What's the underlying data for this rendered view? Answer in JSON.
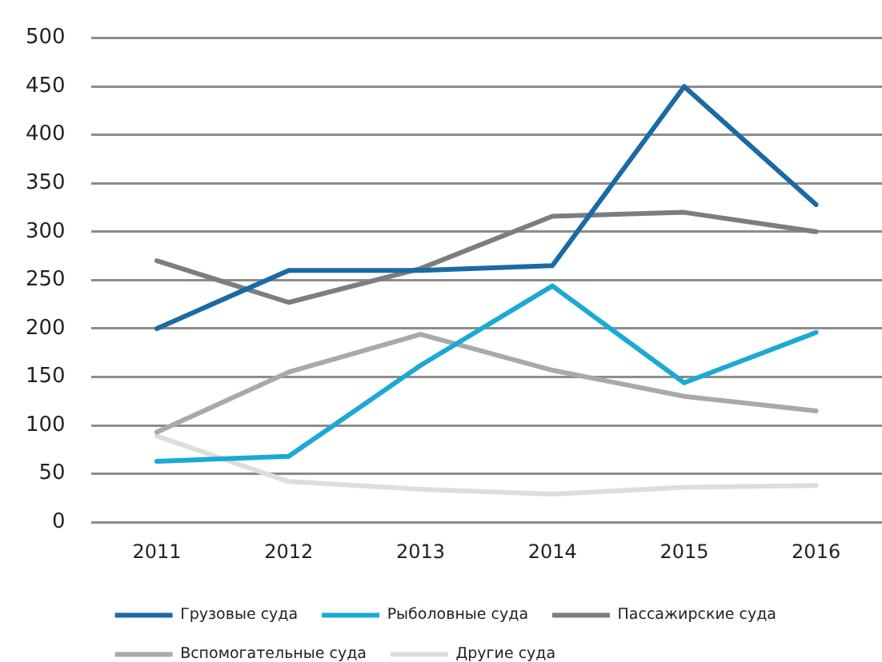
{
  "chart_data": {
    "type": "line",
    "categories": [
      "2011",
      "2012",
      "2013",
      "2014",
      "2015",
      "2016"
    ],
    "series": [
      {
        "name": "Грузовые суда",
        "color": "#1a6aa4",
        "values": [
          200,
          260,
          260,
          265,
          450,
          328
        ]
      },
      {
        "name": "Рыболовные суда",
        "color": "#1ba9d6",
        "values": [
          63,
          68,
          162,
          244,
          144,
          196
        ]
      },
      {
        "name": "Пассажирские суда",
        "color": "#7b7e80",
        "values": [
          270,
          227,
          262,
          316,
          320,
          300
        ]
      },
      {
        "name": "Вспомогательные суда",
        "color": "#a7a9aa",
        "values": [
          93,
          155,
          194,
          157,
          130,
          115
        ]
      },
      {
        "name": "Другие суда",
        "color": "#dcdddd",
        "values": [
          89,
          42,
          34,
          29,
          36,
          38
        ]
      }
    ],
    "ylim": [
      0,
      500
    ],
    "yticks": [
      0,
      50,
      100,
      150,
      200,
      250,
      300,
      350,
      400,
      450,
      500
    ],
    "grid": "y",
    "legend": "bottom",
    "marker": "none",
    "line_style": "solid"
  }
}
